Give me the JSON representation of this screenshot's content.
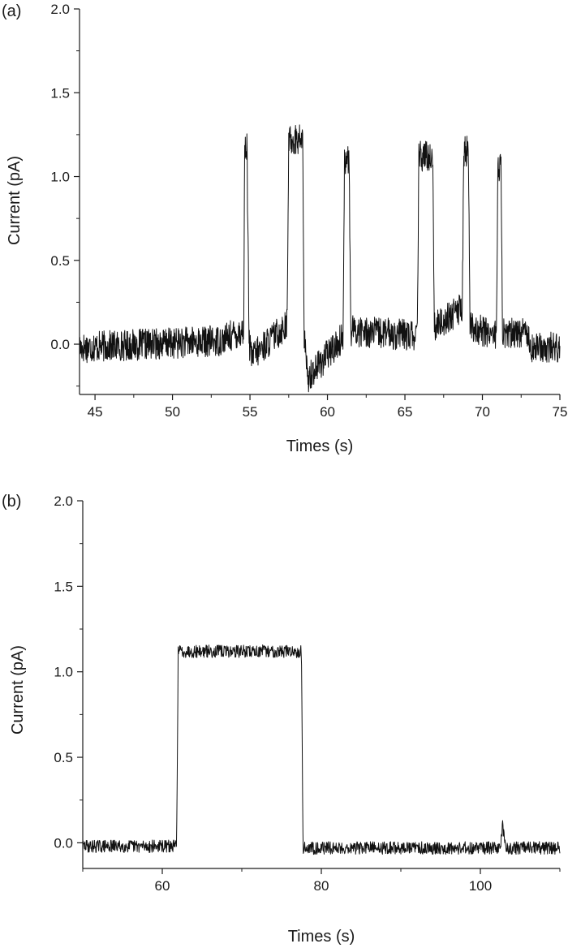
{
  "chart_data": [
    {
      "type": "line",
      "panel_label": "(a)",
      "xlabel": "Times (s)",
      "ylabel": "Current (pA)",
      "xlim": [
        44,
        75
      ],
      "ylim": [
        -0.3,
        2.0
      ],
      "x_ticks": [
        45,
        50,
        55,
        60,
        65,
        70,
        75
      ],
      "y_ticks": [
        0.0,
        0.5,
        1.0,
        1.5,
        2.0
      ],
      "x_tick_labels": [
        "45",
        "50",
        "55",
        "60",
        "65",
        "70",
        "75"
      ],
      "y_tick_labels": [
        "0.0",
        "0.5",
        "1.0",
        "1.5",
        "2.0"
      ],
      "grid": false,
      "line_color": "#111111",
      "series": [
        {
          "x": [
            44.0,
            53.0,
            54.6,
            54.65,
            54.8,
            54.95,
            55.1,
            57.4,
            57.5,
            58.4,
            58.5,
            58.7,
            61.0,
            61.1,
            61.4,
            61.5,
            65.8,
            65.9,
            66.8,
            66.9,
            68.7,
            68.8,
            69.1,
            69.2,
            70.9,
            71.0,
            71.2,
            71.3,
            73.0,
            73.1,
            75.0
          ],
          "y": [
            -0.02,
            0.02,
            0.08,
            1.15,
            1.2,
            0.0,
            -0.08,
            0.12,
            1.22,
            1.22,
            0.05,
            -0.2,
            0.04,
            1.1,
            1.1,
            0.08,
            0.05,
            1.12,
            1.12,
            0.1,
            0.22,
            1.15,
            1.15,
            0.1,
            0.06,
            1.05,
            1.05,
            0.06,
            0.08,
            -0.02,
            -0.02
          ]
        }
      ]
    },
    {
      "type": "line",
      "panel_label": "(b)",
      "xlabel": "Times (s)",
      "ylabel": "Current (pA)",
      "xlim": [
        50,
        110
      ],
      "ylim": [
        -0.15,
        2.0
      ],
      "x_ticks": [
        60,
        80,
        100
      ],
      "y_ticks": [
        0.0,
        0.5,
        1.0,
        1.5,
        2.0
      ],
      "x_tick_labels": [
        "60",
        "80",
        "100"
      ],
      "y_tick_labels": [
        "0.0",
        "0.5",
        "1.0",
        "1.5",
        "2.0"
      ],
      "grid": false,
      "line_color": "#111111",
      "series": [
        {
          "x": [
            50.0,
            61.8,
            62.0,
            77.5,
            77.7,
            102.5,
            102.8,
            103.2,
            110.0
          ],
          "y": [
            -0.02,
            -0.02,
            1.12,
            1.12,
            -0.03,
            -0.03,
            0.1,
            -0.03,
            -0.03
          ]
        }
      ]
    }
  ]
}
